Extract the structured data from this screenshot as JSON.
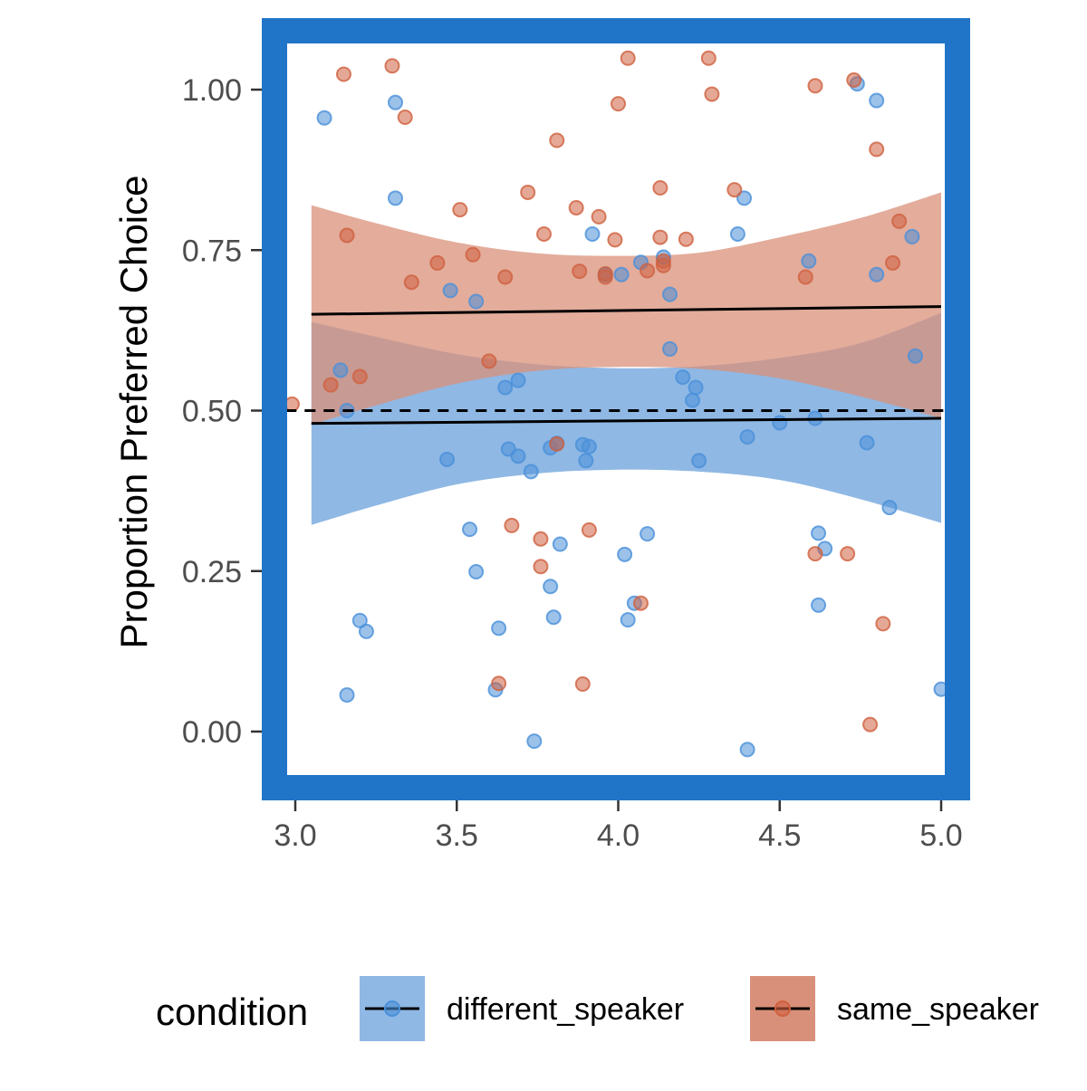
{
  "chart_data": {
    "type": "scatter",
    "title": "",
    "xlabel": "",
    "ylabel": "Proportion Preferred Choice",
    "xlim": [
      2.9,
      5.09
    ],
    "ylim": [
      -0.13,
      1.1
    ],
    "x_ticks": [
      3.0,
      3.5,
      4.0,
      4.5,
      5.0
    ],
    "x_tick_labels": [
      "3.0",
      "3.5",
      "4.0",
      "4.5",
      "5.0"
    ],
    "y_ticks": [
      0.0,
      0.25,
      0.5,
      0.75,
      1.0
    ],
    "y_tick_labels": [
      "0.00",
      "0.25",
      "0.50",
      "0.75",
      "1.00"
    ],
    "reference_line": {
      "y": 0.5,
      "style": "dashed",
      "x_range": [
        2.97,
        5.0
      ]
    },
    "grid": false,
    "panel_border_color": "#2175c8",
    "legend": {
      "title": "condition",
      "position": "bottom",
      "entries": [
        "different_speaker",
        "same_speaker"
      ]
    },
    "series": [
      {
        "name": "different_speaker",
        "point_color": "#4a90d9",
        "band_color": "#8fb8e4",
        "fit": {
          "x": [
            3.05,
            5.0
          ],
          "y": [
            0.48,
            0.488
          ]
        },
        "ribbon": [
          {
            "x": 3.05,
            "lower": 0.322,
            "upper": 0.638
          },
          {
            "x": 3.25,
            "lower": 0.352,
            "upper": 0.615
          },
          {
            "x": 3.5,
            "lower": 0.385,
            "upper": 0.588
          },
          {
            "x": 3.75,
            "lower": 0.402,
            "upper": 0.572
          },
          {
            "x": 4.0,
            "lower": 0.408,
            "upper": 0.566
          },
          {
            "x": 4.25,
            "lower": 0.405,
            "upper": 0.569
          },
          {
            "x": 4.5,
            "lower": 0.392,
            "upper": 0.582
          },
          {
            "x": 4.75,
            "lower": 0.362,
            "upper": 0.605
          },
          {
            "x": 5.0,
            "lower": 0.325,
            "upper": 0.652
          }
        ],
        "points": [
          [
            3.09,
            0.956
          ],
          [
            3.31,
            0.98
          ],
          [
            3.31,
            0.831
          ],
          [
            3.14,
            0.563
          ],
          [
            3.16,
            0.5
          ],
          [
            3.16,
            0.057
          ],
          [
            3.2,
            0.173
          ],
          [
            3.22,
            0.156
          ],
          [
            3.48,
            0.687
          ],
          [
            3.47,
            0.424
          ],
          [
            3.54,
            0.315
          ],
          [
            3.56,
            0.249
          ],
          [
            3.56,
            0.67
          ],
          [
            3.62,
            0.065
          ],
          [
            3.63,
            0.161
          ],
          [
            3.65,
            0.536
          ],
          [
            3.66,
            0.44
          ],
          [
            3.69,
            0.547
          ],
          [
            3.69,
            0.429
          ],
          [
            3.73,
            0.405
          ],
          [
            3.74,
            -0.015
          ],
          [
            3.79,
            0.442
          ],
          [
            3.79,
            0.226
          ],
          [
            3.8,
            0.178
          ],
          [
            3.81,
            0.449
          ],
          [
            3.82,
            0.292
          ],
          [
            3.89,
            0.447
          ],
          [
            3.9,
            0.422
          ],
          [
            3.91,
            0.444
          ],
          [
            3.92,
            0.775
          ],
          [
            3.96,
            0.712
          ],
          [
            4.01,
            0.712
          ],
          [
            4.02,
            0.276
          ],
          [
            4.03,
            0.174
          ],
          [
            4.05,
            0.2
          ],
          [
            4.07,
            0.731
          ],
          [
            4.09,
            0.308
          ],
          [
            4.14,
            0.739
          ],
          [
            4.16,
            0.681
          ],
          [
            4.16,
            0.596
          ],
          [
            4.2,
            0.552
          ],
          [
            4.23,
            0.516
          ],
          [
            4.24,
            0.536
          ],
          [
            4.25,
            0.422
          ],
          [
            4.37,
            0.775
          ],
          [
            4.39,
            0.831
          ],
          [
            4.4,
            0.459
          ],
          [
            4.4,
            -0.028
          ],
          [
            4.5,
            0.481
          ],
          [
            4.59,
            0.733
          ],
          [
            4.61,
            0.488
          ],
          [
            4.62,
            0.309
          ],
          [
            4.62,
            0.197
          ],
          [
            4.64,
            0.285
          ],
          [
            4.74,
            1.009
          ],
          [
            4.77,
            0.45
          ],
          [
            4.8,
            0.983
          ],
          [
            4.8,
            0.712
          ],
          [
            4.84,
            0.349
          ],
          [
            4.91,
            0.771
          ],
          [
            4.92,
            0.585
          ],
          [
            5.0,
            0.066
          ]
        ]
      },
      {
        "name": "same_speaker",
        "point_color": "#d0603f",
        "band_color": "#d9907a",
        "fit": {
          "x": [
            3.05,
            5.0
          ],
          "y": [
            0.65,
            0.662
          ]
        },
        "ribbon": [
          {
            "x": 3.05,
            "lower": 0.478,
            "upper": 0.82
          },
          {
            "x": 3.25,
            "lower": 0.508,
            "upper": 0.792
          },
          {
            "x": 3.5,
            "lower": 0.542,
            "upper": 0.762
          },
          {
            "x": 3.75,
            "lower": 0.562,
            "upper": 0.745
          },
          {
            "x": 4.0,
            "lower": 0.568,
            "upper": 0.741
          },
          {
            "x": 4.25,
            "lower": 0.565,
            "upper": 0.746
          },
          {
            "x": 4.5,
            "lower": 0.55,
            "upper": 0.77
          },
          {
            "x": 4.75,
            "lower": 0.522,
            "upper": 0.8
          },
          {
            "x": 5.0,
            "lower": 0.488,
            "upper": 0.84
          }
        ],
        "points": [
          [
            2.99,
            0.51
          ],
          [
            3.11,
            0.54
          ],
          [
            3.15,
            1.024
          ],
          [
            3.16,
            0.773
          ],
          [
            3.2,
            0.553
          ],
          [
            3.3,
            1.037
          ],
          [
            3.34,
            0.957
          ],
          [
            3.36,
            0.7
          ],
          [
            3.44,
            0.73
          ],
          [
            3.51,
            0.813
          ],
          [
            3.55,
            0.743
          ],
          [
            3.6,
            0.577
          ],
          [
            3.63,
            0.075
          ],
          [
            3.65,
            0.708
          ],
          [
            3.67,
            0.321
          ],
          [
            3.72,
            0.84
          ],
          [
            3.76,
            0.3
          ],
          [
            3.76,
            0.257
          ],
          [
            3.77,
            0.775
          ],
          [
            3.81,
            0.921
          ],
          [
            3.81,
            0.448
          ],
          [
            3.87,
            0.816
          ],
          [
            3.88,
            0.717
          ],
          [
            3.89,
            0.074
          ],
          [
            3.91,
            0.314
          ],
          [
            3.94,
            0.802
          ],
          [
            3.96,
            0.713
          ],
          [
            3.96,
            0.708
          ],
          [
            3.99,
            0.766
          ],
          [
            4.0,
            0.978
          ],
          [
            4.03,
            1.049
          ],
          [
            4.07,
            0.2
          ],
          [
            4.09,
            0.718
          ],
          [
            4.13,
            0.847
          ],
          [
            4.13,
            0.77
          ],
          [
            4.14,
            0.726
          ],
          [
            4.14,
            0.733
          ],
          [
            4.21,
            0.767
          ],
          [
            4.28,
            1.049
          ],
          [
            4.29,
            0.993
          ],
          [
            4.36,
            0.844
          ],
          [
            4.58,
            0.708
          ],
          [
            4.61,
            1.006
          ],
          [
            4.61,
            0.277
          ],
          [
            4.71,
            0.277
          ],
          [
            4.73,
            1.015
          ],
          [
            4.78,
            0.011
          ],
          [
            4.8,
            0.907
          ],
          [
            4.82,
            0.168
          ],
          [
            4.85,
            0.73
          ],
          [
            4.87,
            0.795
          ]
        ]
      }
    ]
  }
}
